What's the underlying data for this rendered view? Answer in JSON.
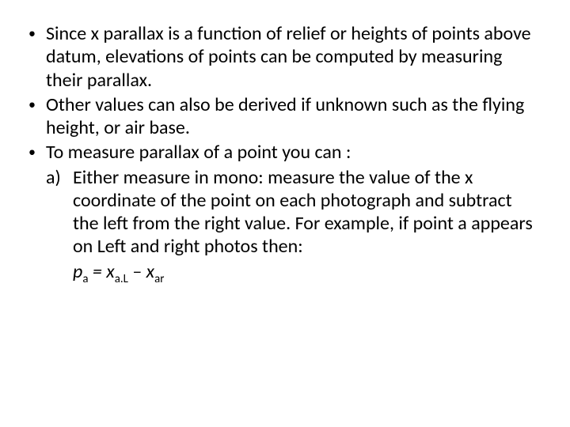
{
  "page": {
    "background_color": "#ffffff",
    "text_color": "#000000",
    "font_family": "Calibri, Arial, sans-serif",
    "font_size_pt": 24,
    "line_height": 1.22
  },
  "bullets": [
    {
      "marker": "•",
      "text": "Since x parallax is a function of relief or heights of points above datum, elevations of points can be computed by measuring their parallax."
    },
    {
      "marker": "•",
      "text": "Other values can also be derived if unknown such as the flying height, or air base."
    },
    {
      "marker": "•",
      "text": "To measure parallax of a point you can :",
      "sub": {
        "marker": "a)",
        "text": "Either measure in mono: measure the value of the x coordinate of the point on each photograph and subtract the left from the right value. For  example, if point a appears on Left and right photos then:",
        "formula": {
          "lhs_var": "p",
          "lhs_sub": "a",
          "eq": " = ",
          "t1_var": "x",
          "t1_sub": "a.L",
          "minus": " – ",
          "t2_var": "x",
          "t2_sub": "ar"
        }
      }
    }
  ]
}
